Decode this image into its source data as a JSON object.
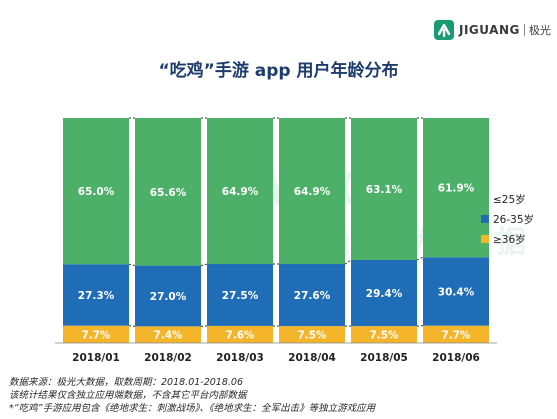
{
  "brand": {
    "name": "JIGUANG",
    "name_cn": "极光",
    "watermark": "JIGUANG",
    "watermark_cn": "极光大数据",
    "color": "#1a9a70"
  },
  "title": "“吃鸡”手游 app 用户年龄分布",
  "chart_data": {
    "type": "bar",
    "stacked": true,
    "percent": true,
    "categories": [
      "2018/01",
      "2018/02",
      "2018/03",
      "2018/04",
      "2018/05",
      "2018/06"
    ],
    "series": [
      {
        "name": "≥36岁",
        "color": "#f5b52a",
        "values": [
          7.7,
          7.4,
          7.6,
          7.5,
          7.5,
          7.7
        ],
        "labels": [
          "7.7%",
          "7.4%",
          "7.6%",
          "7.5%",
          "7.5%",
          "7.7%"
        ]
      },
      {
        "name": "26-35岁",
        "color": "#1f6cb7",
        "values": [
          27.3,
          27.0,
          27.5,
          27.6,
          29.4,
          30.4
        ],
        "labels": [
          "27.3%",
          "27.0%",
          "27.5%",
          "27.6%",
          "29.4%",
          "30.4%"
        ]
      },
      {
        "name": "≤25岁",
        "color": "#4cb069",
        "values": [
          65.0,
          65.6,
          64.9,
          64.9,
          63.1,
          61.9
        ],
        "labels": [
          "65.0%",
          "65.6%",
          "64.9%",
          "64.9%",
          "63.1%",
          "61.9%"
        ]
      }
    ],
    "legend_order": [
      "≤25岁",
      "26-35岁",
      "≥36岁"
    ],
    "legend_position": "right",
    "ylim": [
      0,
      100
    ],
    "grid": false,
    "connectors": "dashed"
  },
  "footnotes": [
    "数据来源：极光大数据，取数周期：2018.01-2018.06",
    "该统计结果仅含独立应用端数据，不含其它平台内部数据",
    "*“吃鸡”手游应用包含《绝地求生：刺激战场》、《绝地求生：全军出击》等独立游戏应用"
  ]
}
